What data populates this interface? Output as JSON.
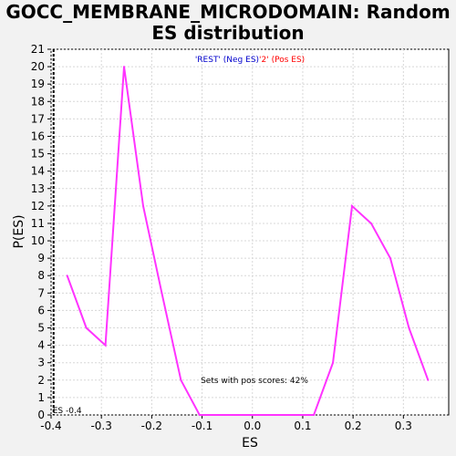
{
  "chart_data": {
    "type": "line",
    "title": "GOCC_MEMBRANE_MICRODOMAIN: Random\nES distribution",
    "xlabel": "ES",
    "ylabel": "P(ES)",
    "xlim": [
      -0.4,
      0.39
    ],
    "ylim": [
      0,
      21
    ],
    "x_ticks": [
      "-0.4",
      "-0.3",
      "-0.2",
      "-0.1",
      "0.0",
      "0.1",
      "0.2",
      "0.3"
    ],
    "x_tick_values": [
      -0.4,
      -0.3,
      -0.2,
      -0.1,
      0.0,
      0.1,
      0.2,
      0.3
    ],
    "y_ticks": [
      "0",
      "1",
      "2",
      "3",
      "4",
      "5",
      "6",
      "7",
      "8",
      "9",
      "10",
      "11",
      "12",
      "13",
      "14",
      "15",
      "16",
      "17",
      "18",
      "19",
      "20",
      "21"
    ],
    "y_tick_values": [
      0,
      1,
      2,
      3,
      4,
      5,
      6,
      7,
      8,
      9,
      10,
      11,
      12,
      13,
      14,
      15,
      16,
      17,
      18,
      19,
      20,
      21
    ],
    "grid": true,
    "series": [
      {
        "color": "#ff33ff",
        "x": [
          -0.368,
          -0.33,
          -0.292,
          -0.255,
          -0.217,
          -0.18,
          -0.142,
          -0.105,
          -0.067,
          -0.03,
          0.008,
          0.046,
          0.084,
          0.122,
          0.16,
          0.198,
          0.236,
          0.274,
          0.311,
          0.349
        ],
        "y": [
          8,
          5,
          4,
          20,
          12,
          7,
          2,
          0,
          0,
          0,
          0,
          0,
          0,
          0,
          3,
          12,
          11,
          9,
          5,
          2
        ]
      }
    ],
    "legend": {
      "neg_label": "'REST' (Neg ES)",
      "pos_label": "'2' (Pos ES)",
      "neg_color": "#0000cc",
      "pos_color": "#ff0000"
    },
    "annotations": {
      "pos_scores": "Sets with pos scores: 42%",
      "es_marker_label": "ES -0.4",
      "es_marker_value": -0.395
    }
  }
}
